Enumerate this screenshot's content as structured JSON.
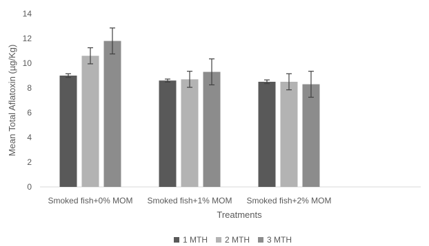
{
  "chart_data": {
    "type": "bar",
    "title": "",
    "xlabel": "Treatments",
    "ylabel": "Mean Total Aflatoxin (µg/Kg)",
    "ylim": [
      0,
      14
    ],
    "yticks": [
      "0",
      "2",
      "4",
      "6",
      "8",
      "10",
      "12",
      "14"
    ],
    "grid": false,
    "legend_position": "bottom",
    "categories": [
      "Smoked fish+0% MOM",
      "Smoked fish+1% MOM",
      "Smoked fish+2% MOM"
    ],
    "series": [
      {
        "name": "1 MTH",
        "color": "#595959",
        "values": [
          9.0,
          8.6,
          8.5
        ],
        "errors": [
          0.15,
          0.12,
          0.15
        ]
      },
      {
        "name": "2 MTH",
        "color": "#b3b3b3",
        "values": [
          10.6,
          8.7,
          8.5
        ],
        "errors": [
          0.65,
          0.65,
          0.65
        ]
      },
      {
        "name": "3 MTH",
        "color": "#8c8c8c",
        "values": [
          11.8,
          9.3,
          8.3
        ],
        "errors": [
          1.05,
          1.05,
          1.05
        ]
      }
    ]
  }
}
